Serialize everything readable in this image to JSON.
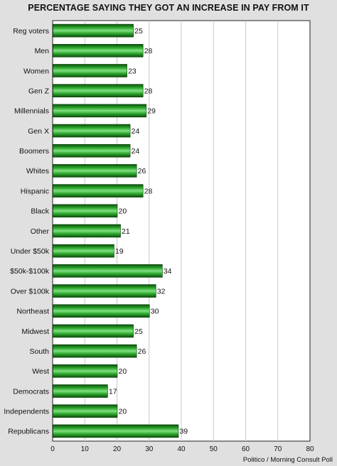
{
  "chart_data": {
    "type": "bar",
    "orientation": "horizontal",
    "title": "PERCENTAGE SAYING THEY GOT AN INCREASE IN PAY FROM IT",
    "categories": [
      "Reg voters",
      "Men",
      "Women",
      "Gen Z",
      "Millennials",
      "Gen X",
      "Boomers",
      "Whites",
      "Hispanic",
      "Black",
      "Other",
      "Under $50k",
      "$50k-$100k",
      "Over $100k",
      "Northeast",
      "Midwest",
      "South",
      "West",
      "Democrats",
      "Independents",
      "Republicans"
    ],
    "values": [
      25,
      28,
      23,
      28,
      29,
      24,
      24,
      26,
      28,
      20,
      21,
      19,
      34,
      32,
      30,
      25,
      26,
      20,
      17,
      20,
      39
    ],
    "xlim": [
      0,
      80
    ],
    "xticks": [
      0,
      10,
      20,
      30,
      40,
      50,
      60,
      70,
      80
    ],
    "xlabel": "",
    "ylabel": "",
    "grid": "vertical",
    "legend": "none",
    "bar_color": "#1e8c1e",
    "source": "Politico / Morning Consult Poll"
  }
}
